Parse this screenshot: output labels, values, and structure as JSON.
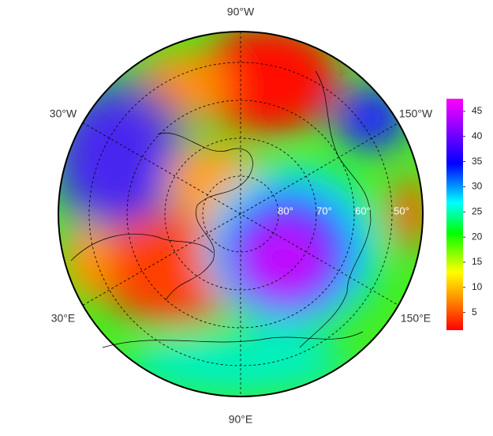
{
  "map": {
    "longitude_labels": {
      "top": "90°W",
      "upper_left": "30°W",
      "upper_right": "150°W",
      "lower_left": "30°E",
      "lower_right": "150°E",
      "bottom": "90°E"
    },
    "latitude_labels": [
      "80°",
      "70°",
      "60°",
      "50°"
    ]
  },
  "colorbar": {
    "lim": [
      1.5,
      47.5
    ],
    "ticks": [
      5,
      10,
      15,
      20,
      25,
      30,
      35,
      40,
      45
    ]
  }
}
